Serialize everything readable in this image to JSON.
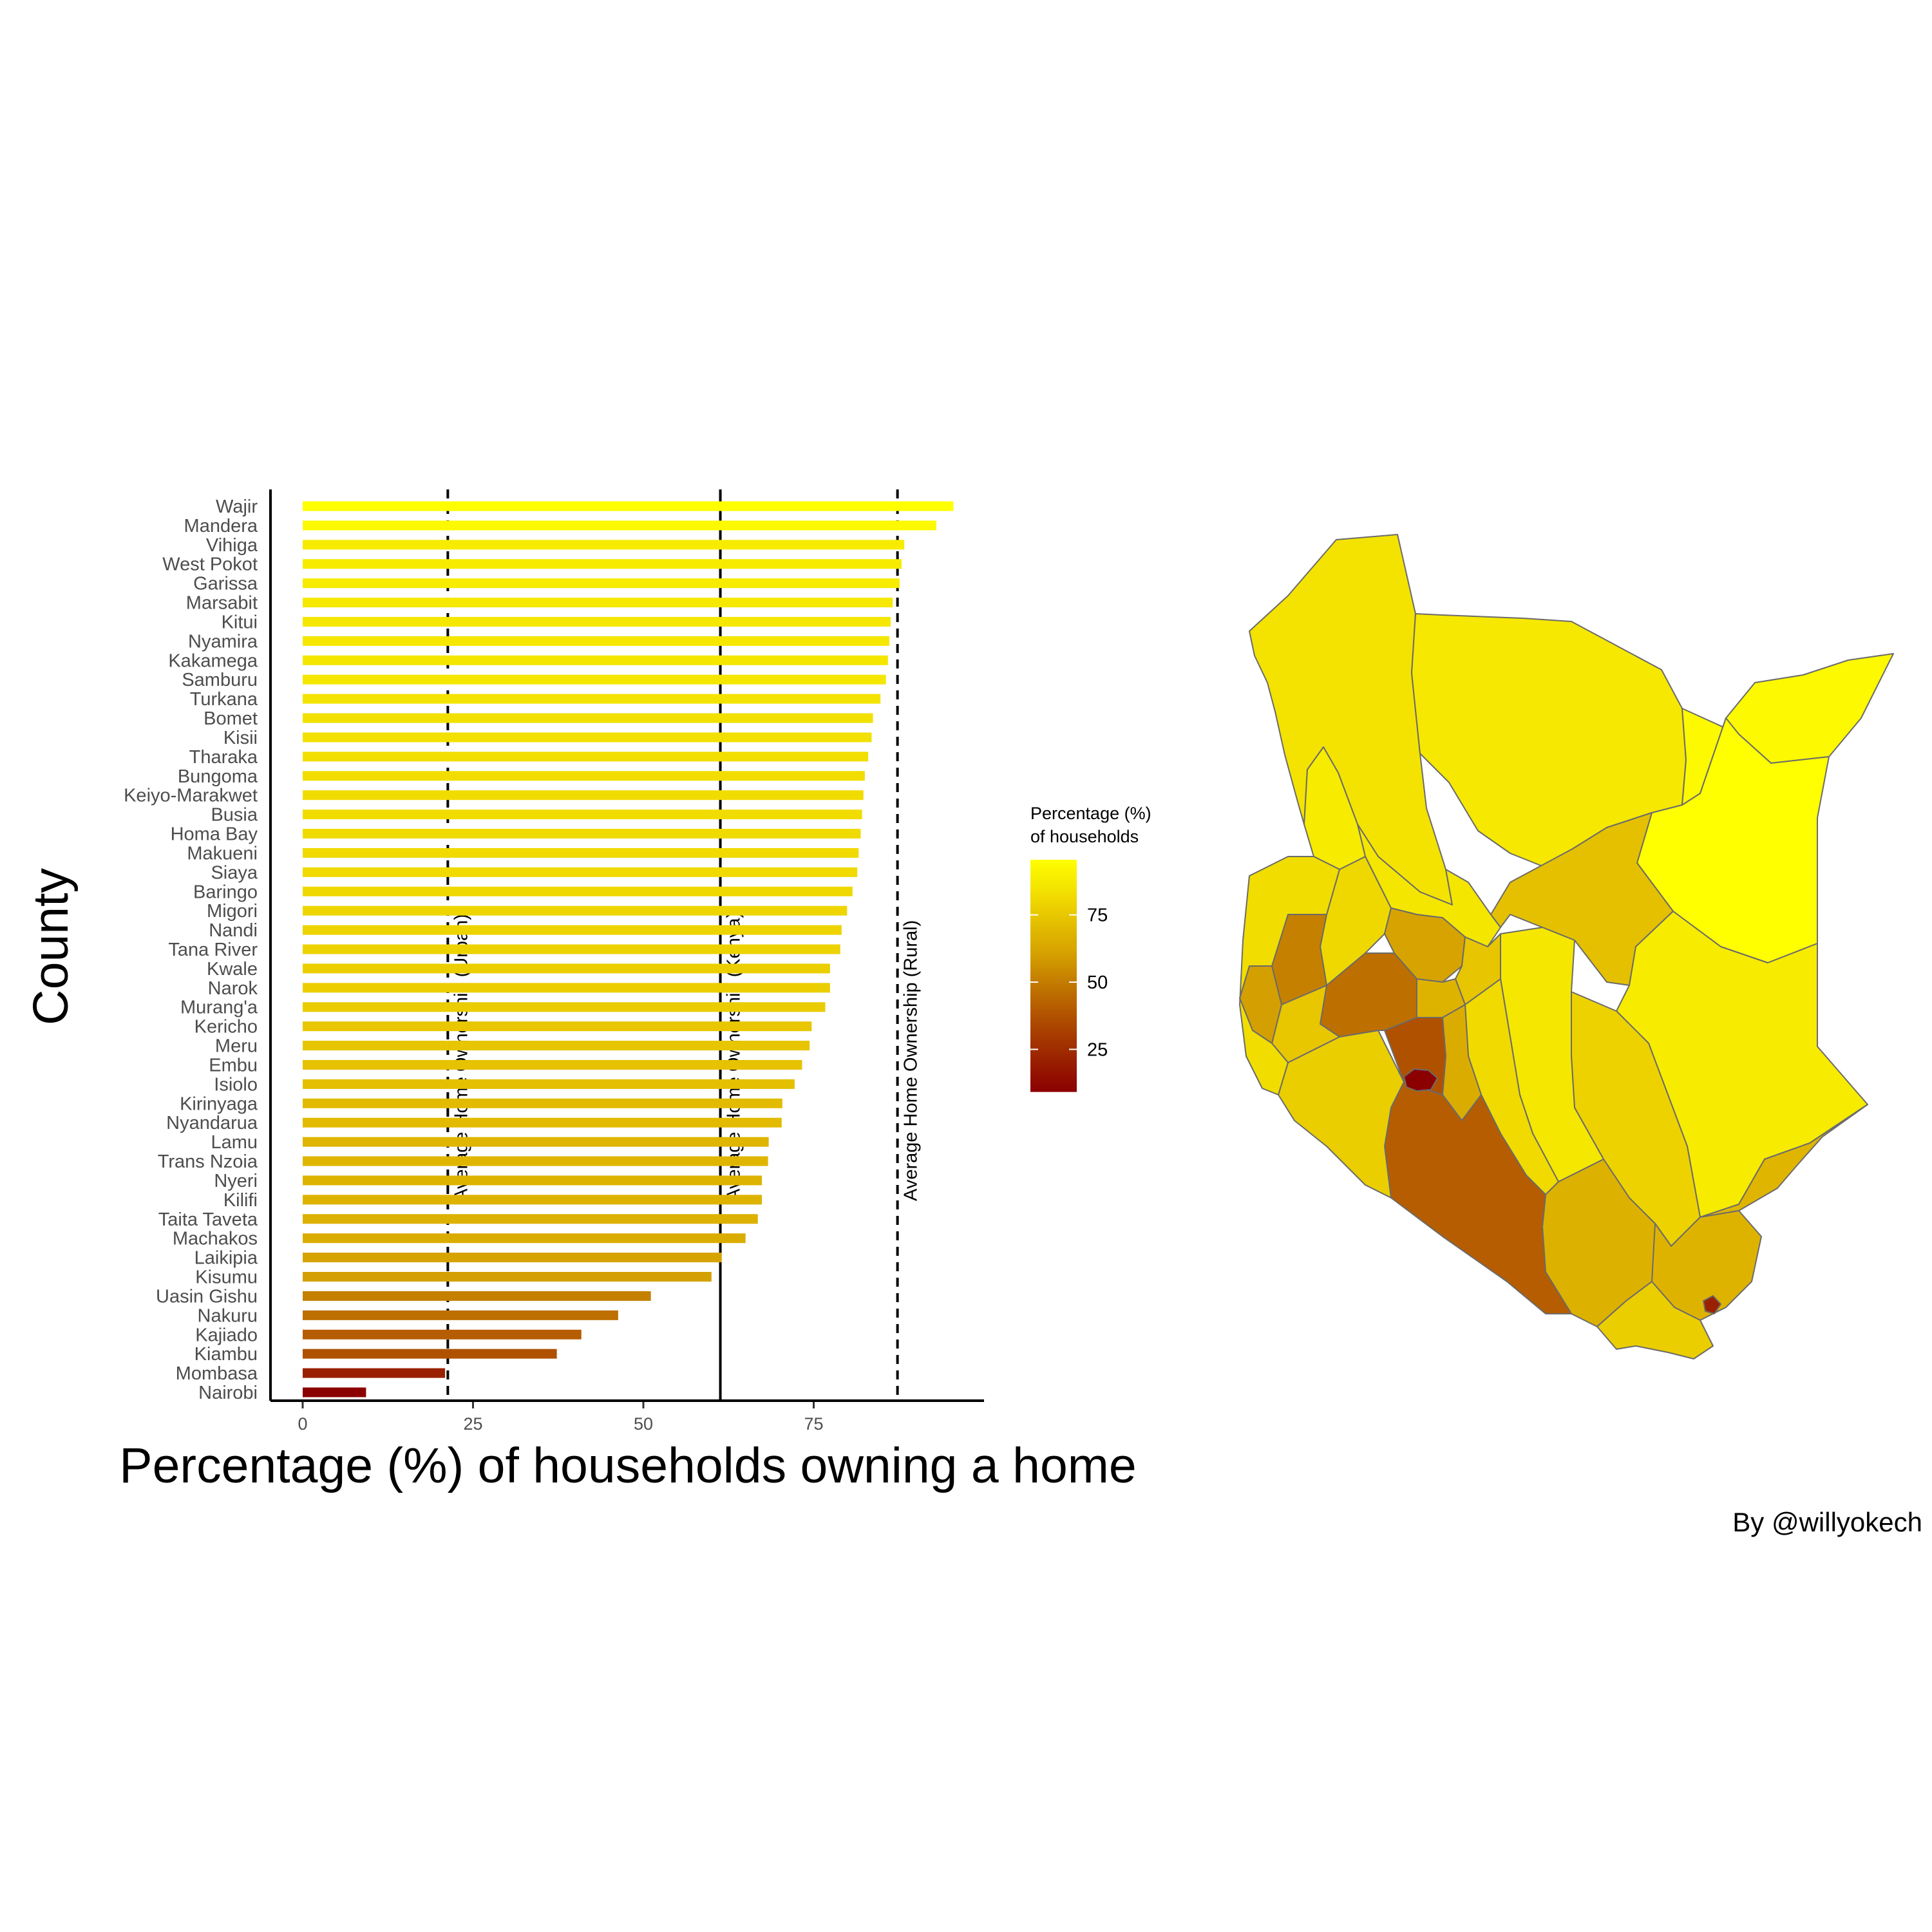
{
  "chart_data": {
    "type": "bar",
    "orientation": "horizontal",
    "xlabel": "Percentage (%) of households owning a home",
    "ylabel": "County",
    "xticks": [
      0,
      25,
      50,
      75
    ],
    "xlim": [
      0,
      100
    ],
    "sorted": "descending",
    "categories": [
      "Wajir",
      "Mandera",
      "Vihiga",
      "West Pokot",
      "Garissa",
      "Marsabit",
      "Kitui",
      "Nyamira",
      "Kakamega",
      "Samburu",
      "Turkana",
      "Bomet",
      "Kisii",
      "Tharaka",
      "Bungoma",
      "Keiyo-Marakwet",
      "Busia",
      "Homa Bay",
      "Makueni",
      "Siaya",
      "Baringo",
      "Migori",
      "Nandi",
      "Tana River",
      "Kwale",
      "Narok",
      "Murang'a",
      "Kericho",
      "Meru",
      "Embu",
      "Isiolo",
      "Kirinyaga",
      "Nyandarua",
      "Lamu",
      "Trans Nzoia",
      "Nyeri",
      "Kilifi",
      "Taita Taveta",
      "Machakos",
      "Laikipia",
      "Kisumu",
      "Uasin Gishu",
      "Nakuru",
      "Kajiado",
      "Kiambu",
      "Mombasa",
      "Nairobi"
    ],
    "values": [
      95.5,
      93.0,
      88.3,
      87.9,
      87.6,
      86.6,
      86.3,
      86.1,
      85.9,
      85.6,
      84.8,
      83.7,
      83.5,
      83.0,
      82.5,
      82.3,
      82.1,
      81.9,
      81.6,
      81.4,
      80.7,
      79.9,
      79.1,
      78.9,
      77.4,
      77.4,
      76.7,
      74.7,
      74.4,
      73.3,
      72.2,
      70.4,
      70.3,
      68.4,
      68.3,
      67.4,
      67.4,
      66.8,
      65.0,
      61.5,
      60.0,
      51.1,
      46.3,
      40.9,
      37.3,
      20.9,
      9.3
    ],
    "reference_lines": [
      {
        "label": "Average Home Ownership (Urban)",
        "value": 21.3,
        "style": "dashed"
      },
      {
        "label": "Average Home Ownership (Kenya)",
        "value": 61.3,
        "style": "solid"
      },
      {
        "label": "Average Home Ownership (Rural)",
        "value": 87.3,
        "style": "dashed"
      }
    ],
    "color_scale": {
      "title_lines": [
        "Percentage (%)",
        "of households"
      ],
      "domain": [
        9.3,
        95.5
      ],
      "ticks": [
        25,
        50,
        75
      ],
      "stops": [
        {
          "value": 9.3,
          "color": "#8b0000"
        },
        {
          "value": 30,
          "color": "#a63a00"
        },
        {
          "value": 45,
          "color": "#bb6a00"
        },
        {
          "value": 60,
          "color": "#d49f00"
        },
        {
          "value": 75,
          "color": "#e8c700"
        },
        {
          "value": 85,
          "color": "#f4e400"
        },
        {
          "value": 95.5,
          "color": "#ffff00"
        }
      ]
    },
    "map": {
      "description": "Kenya counties",
      "counties": [
        {
          "name": "Turkana",
          "value": 84.8
        },
        {
          "name": "Marsabit",
          "value": 86.6
        },
        {
          "name": "Mandera",
          "value": 93.0
        },
        {
          "name": "Wajir",
          "value": 95.5
        },
        {
          "name": "Samburu",
          "value": 85.6
        },
        {
          "name": "Isiolo",
          "value": 72.2
        },
        {
          "name": "Garissa",
          "value": 87.6
        },
        {
          "name": "Tana River",
          "value": 78.9
        },
        {
          "name": "Lamu",
          "value": 68.4
        },
        {
          "name": "Kitui",
          "value": 86.3
        },
        {
          "name": "Makueni",
          "value": 81.6
        },
        {
          "name": "Machakos",
          "value": 65.0
        },
        {
          "name": "Taita Taveta",
          "value": 66.8
        },
        {
          "name": "Kilifi",
          "value": 67.4
        },
        {
          "name": "Kwale",
          "value": 77.4
        },
        {
          "name": "Mombasa",
          "value": 20.9
        },
        {
          "name": "Kajiado",
          "value": 40.9
        },
        {
          "name": "Nairobi",
          "value": 9.3
        },
        {
          "name": "Kiambu",
          "value": 37.3
        },
        {
          "name": "Narok",
          "value": 77.4
        },
        {
          "name": "Nakuru",
          "value": 46.3
        },
        {
          "name": "Laikipia",
          "value": 61.5
        },
        {
          "name": "Baringo",
          "value": 80.7
        },
        {
          "name": "West Pokot",
          "value": 87.9
        },
        {
          "name": "Uasin Gishu",
          "value": 51.1
        },
        {
          "name": "Kisumu",
          "value": 60.0
        },
        {
          "name": "Meru",
          "value": 74.4
        },
        {
          "name": "Nyeri",
          "value": 67.4
        },
        {
          "name": "Kericho",
          "value": 74.7
        }
      ]
    }
  },
  "caption": "By @willyokech"
}
